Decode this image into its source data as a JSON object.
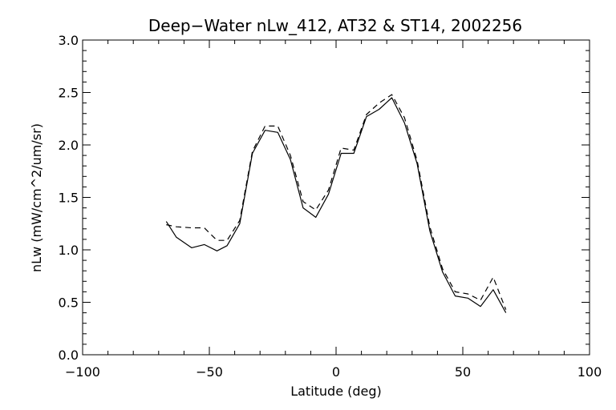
{
  "chart_data": {
    "type": "line",
    "title": "Deep−Water nLw_412, AT32 & ST14, 2002256",
    "xlabel": "Latitude (deg)",
    "ylabel": "nLw (mW/cm^2/um/sr)",
    "xlim": [
      -100,
      100
    ],
    "ylim": [
      0.0,
      3.0
    ],
    "x_ticks": [
      -100,
      -50,
      0,
      50,
      100
    ],
    "x_tick_labels": [
      "−100",
      "−50",
      "0",
      "50",
      "100"
    ],
    "y_ticks": [
      0.0,
      0.5,
      1.0,
      1.5,
      2.0,
      2.5,
      3.0
    ],
    "y_tick_labels": [
      "0.0",
      "0.5",
      "1.0",
      "1.5",
      "2.0",
      "2.5",
      "3.0"
    ],
    "x_minor_step": 10,
    "y_minor_step": 0.1,
    "grid": false,
    "series": [
      {
        "style": "solid",
        "color": "#000000",
        "x": [
          -67,
          -63,
          -57,
          -52,
          -47,
          -43,
          -38,
          -33,
          -28,
          -23,
          -18,
          -13,
          -8,
          -3,
          2,
          7,
          12,
          17,
          22,
          27,
          32,
          37,
          42,
          47,
          52,
          57,
          62,
          67
        ],
        "y": [
          1.27,
          1.12,
          1.02,
          1.05,
          0.99,
          1.04,
          1.25,
          1.92,
          2.14,
          2.12,
          1.86,
          1.4,
          1.31,
          1.53,
          1.92,
          1.92,
          2.27,
          2.34,
          2.45,
          2.21,
          1.82,
          1.18,
          0.79,
          0.56,
          0.54,
          0.46,
          0.62,
          0.4
        ]
      },
      {
        "style": "dashed",
        "color": "#000000",
        "x": [
          -67,
          -63,
          -57,
          -52,
          -47,
          -43,
          -38,
          -33,
          -28,
          -23,
          -18,
          -13,
          -8,
          -3,
          2,
          7,
          12,
          17,
          22,
          27,
          32,
          37,
          42,
          47,
          52,
          57,
          62,
          67
        ],
        "y": [
          1.24,
          1.22,
          1.21,
          1.21,
          1.09,
          1.09,
          1.28,
          1.94,
          2.18,
          2.18,
          1.9,
          1.46,
          1.38,
          1.57,
          1.97,
          1.95,
          2.29,
          2.4,
          2.48,
          2.26,
          1.85,
          1.22,
          0.82,
          0.6,
          0.58,
          0.52,
          0.74,
          0.43
        ]
      }
    ]
  }
}
